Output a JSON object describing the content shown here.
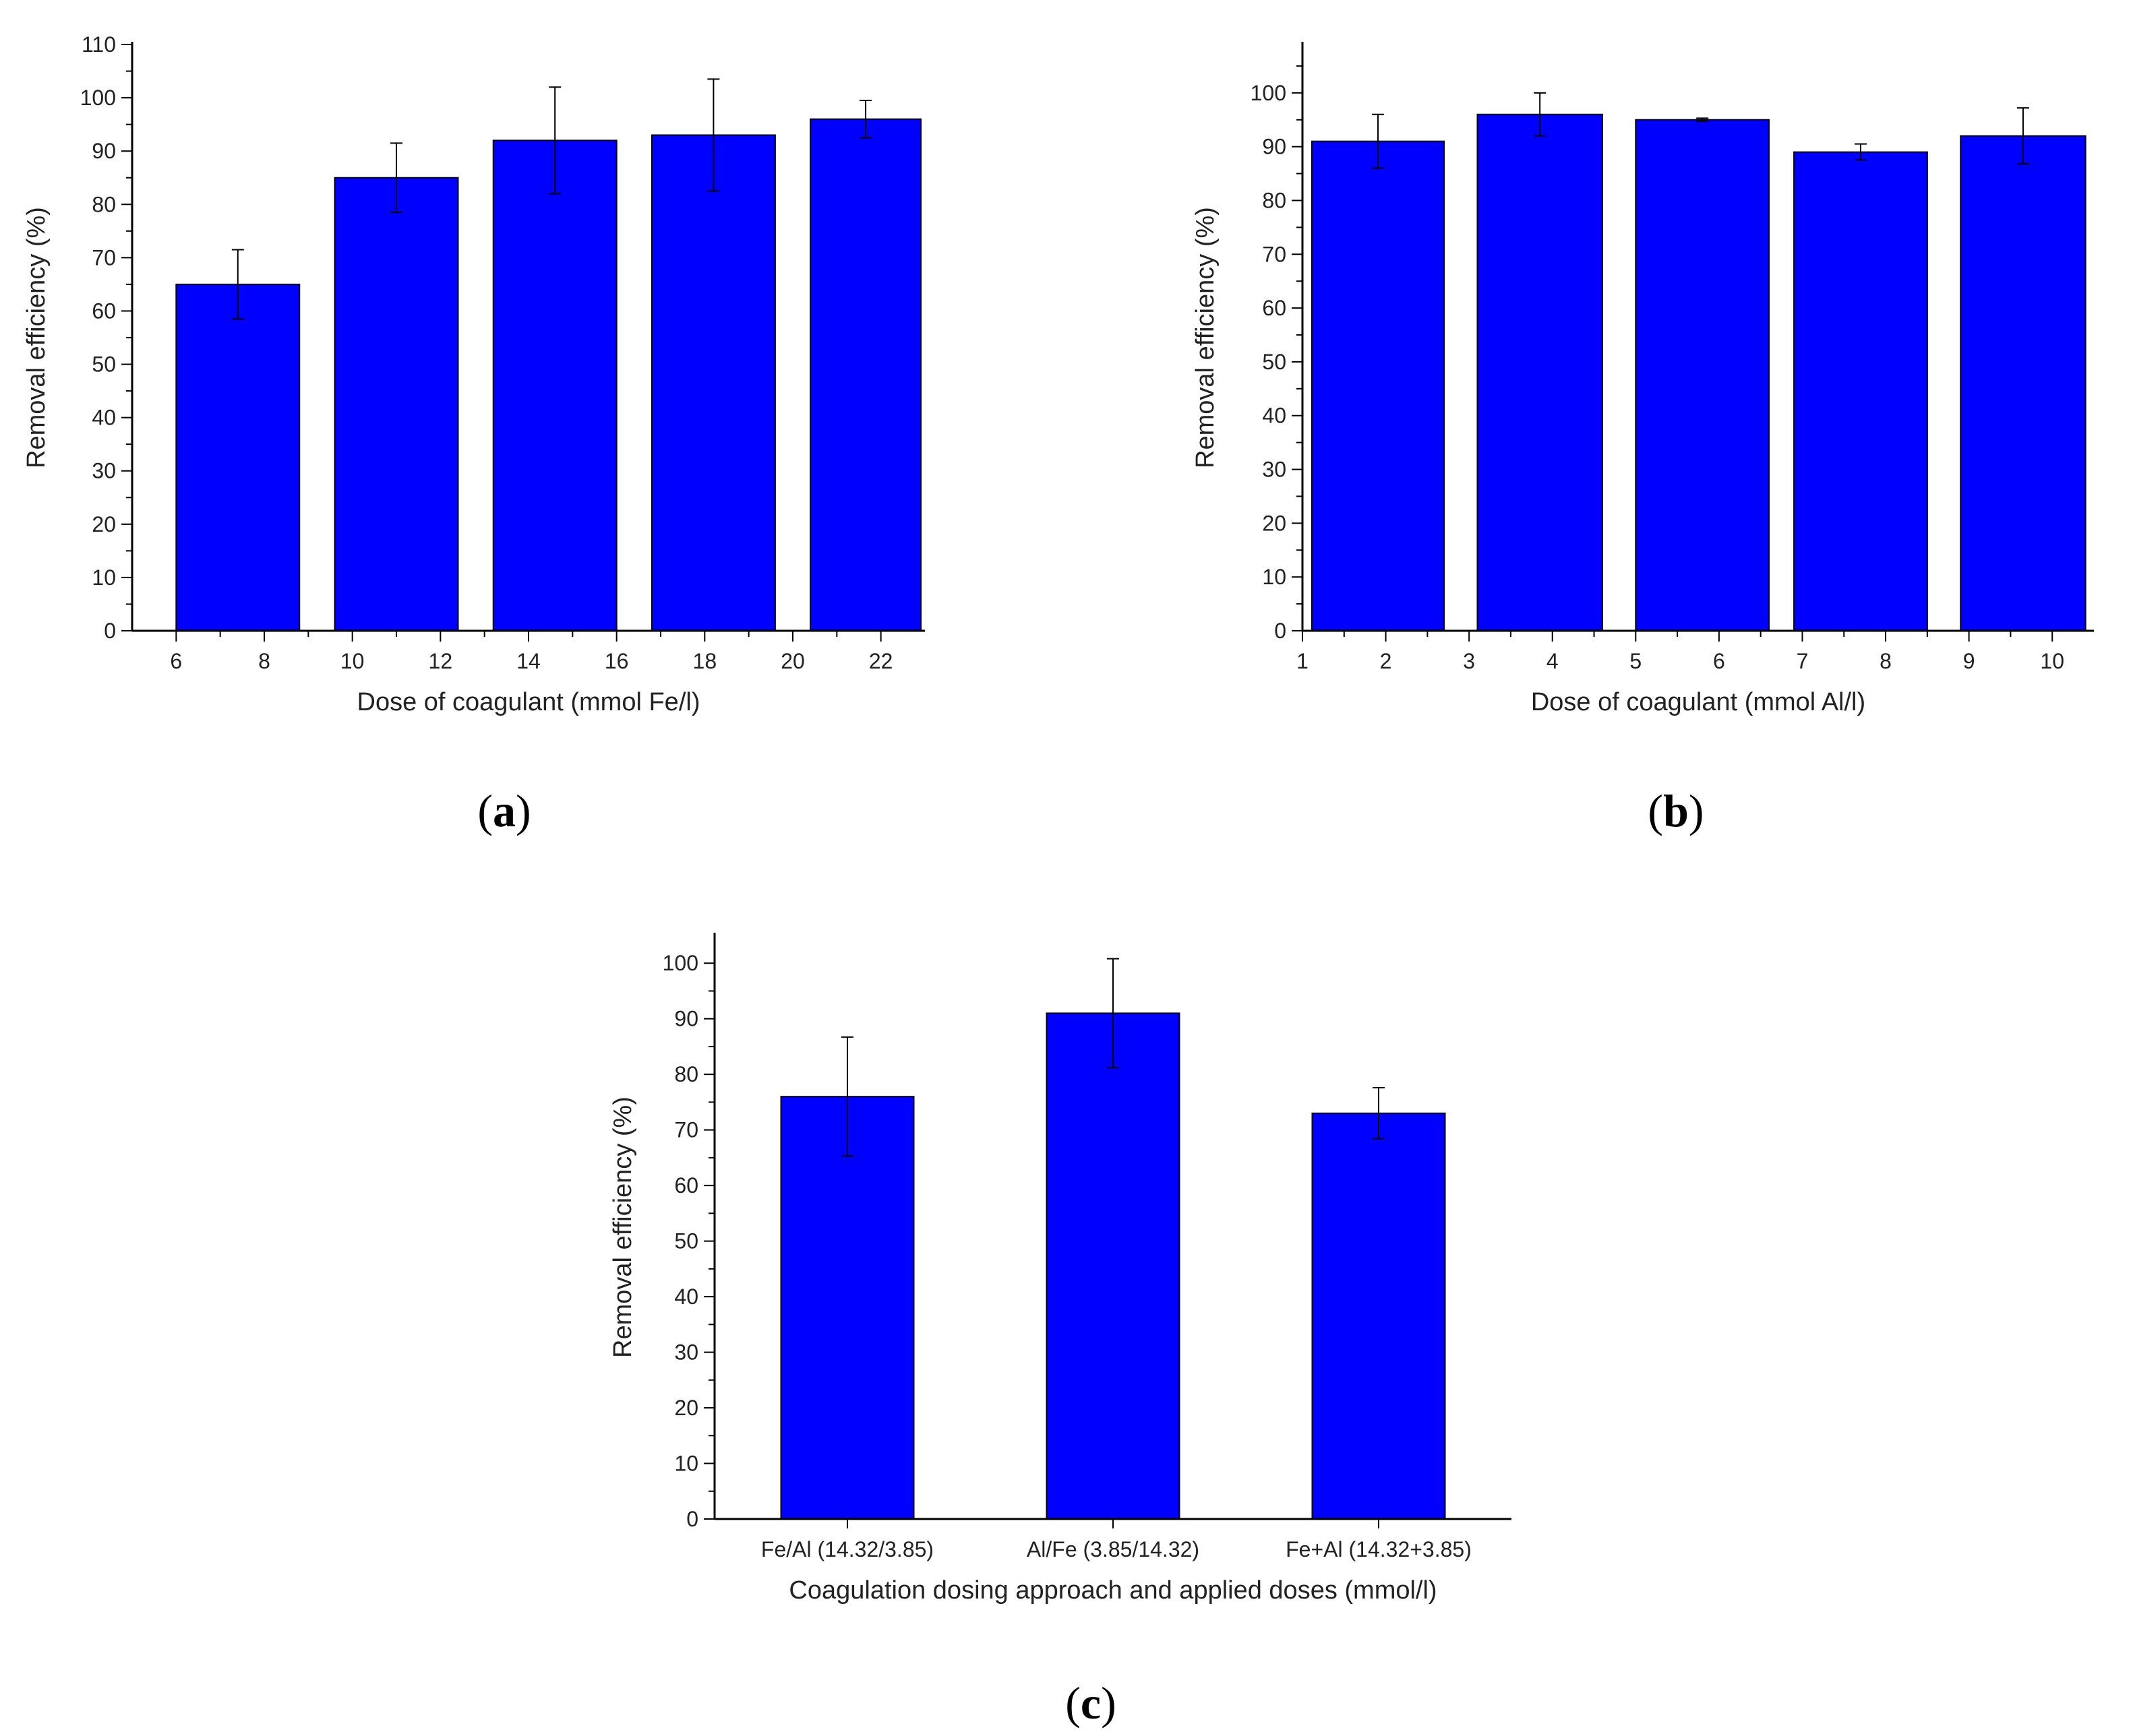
{
  "chart_data": [
    {
      "id": "a",
      "type": "bar",
      "panel_label": "a",
      "xlabel": "Dose of coagulant (mmol Fe/l)",
      "ylabel": "Removal efficiency (%)",
      "ylim": [
        0,
        110
      ],
      "yticks": [
        0,
        10,
        20,
        30,
        40,
        50,
        60,
        70,
        80,
        90,
        100,
        110
      ],
      "xlim": [
        5,
        23
      ],
      "xticks": [
        6,
        8,
        10,
        12,
        14,
        16,
        18,
        20,
        22
      ],
      "bars": [
        {
          "x0": 6,
          "x1": 8.8,
          "value": 65,
          "error": 6.5
        },
        {
          "x0": 9.6,
          "x1": 12.4,
          "value": 85,
          "error": 6.5
        },
        {
          "x0": 13.2,
          "x1": 16,
          "value": 92,
          "error": 10
        },
        {
          "x0": 16.8,
          "x1": 19.6,
          "value": 93,
          "error": 10.5
        },
        {
          "x0": 20.4,
          "x1": 23.2,
          "value": 96,
          "error": 3.5
        }
      ],
      "bar_color": "#0000ff"
    },
    {
      "id": "b",
      "type": "bar",
      "panel_label": "b",
      "xlabel": "Dose of coagulant (mmol Al/l)",
      "ylabel": "Removal efficiency (%)",
      "ylim": [
        0,
        109
      ],
      "yticks": [
        0,
        10,
        20,
        30,
        40,
        50,
        60,
        70,
        80,
        90,
        100
      ],
      "xlim": [
        1,
        10.5
      ],
      "xticks": [
        1,
        2,
        3,
        4,
        5,
        6,
        7,
        8,
        9,
        10
      ],
      "bars": [
        {
          "x0": 1.1,
          "x1": 2.7,
          "value": 91,
          "error": 5
        },
        {
          "x0": 3.1,
          "x1": 4.6,
          "value": 96,
          "error": 4
        },
        {
          "x0": 5.0,
          "x1": 6.6,
          "value": 95,
          "error": 0.3
        },
        {
          "x0": 6.9,
          "x1": 8.5,
          "value": 89,
          "error": 1.5
        },
        {
          "x0": 8.9,
          "x1": 10.4,
          "value": 92,
          "error": 5.2
        }
      ],
      "bar_color": "#0000ff"
    },
    {
      "id": "c",
      "type": "bar",
      "panel_label": "c",
      "xlabel": "Coagulation dosing approach and applied doses (mmol/l)",
      "ylabel": "Removal efficiency (%)",
      "ylim": [
        0,
        105
      ],
      "yticks": [
        0,
        10,
        20,
        30,
        40,
        50,
        60,
        70,
        80,
        90,
        100
      ],
      "categories": [
        "Fe/Al (14.32/3.85)",
        "Al/Fe (3.85/14.32)",
        "Fe+Al (14.32+3.85)"
      ],
      "values": [
        76,
        91,
        73
      ],
      "errors": [
        10.7,
        9.8,
        4.6
      ],
      "bar_color": "#0000ff"
    }
  ]
}
